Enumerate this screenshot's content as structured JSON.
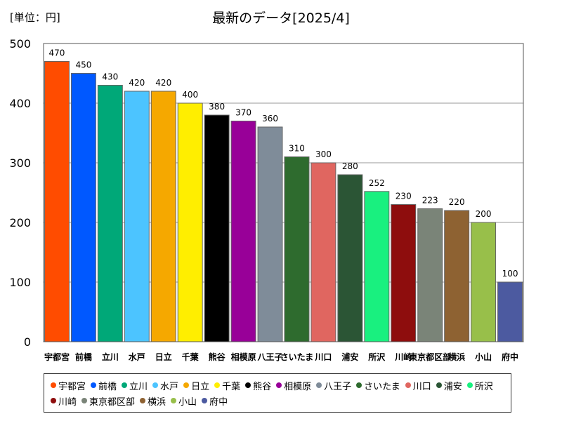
{
  "unit_label": "[単位：円]",
  "chart_data": {
    "type": "bar",
    "title": "最新のデータ[2025/4]",
    "xlabel": "",
    "ylabel": "",
    "ylim": [
      0,
      500
    ],
    "yticks": [
      0,
      100,
      200,
      300,
      400,
      500
    ],
    "grid": true,
    "legend_position": "bottom",
    "categories": [
      "宇都宮",
      "前橋",
      "立川",
      "水戸",
      "日立",
      "千葉",
      "熊谷",
      "相模原",
      "八王子",
      "さいたま",
      "川口",
      "浦安",
      "所沢",
      "川崎",
      "東京都区部",
      "横浜",
      "小山",
      "府中"
    ],
    "tick_labels": [
      "宇都宮",
      "前橋",
      "立川",
      "水戸",
      "日立",
      "千葉",
      "熊谷",
      "相模原",
      "八王子",
      "さいたま",
      "川口",
      "浦安",
      "所沢",
      "川崎",
      "東京都区部",
      "横浜",
      "小山",
      "府中"
    ],
    "values": [
      470,
      450,
      430,
      420,
      420,
      400,
      380,
      370,
      360,
      310,
      300,
      280,
      252,
      230,
      223,
      220,
      200,
      100
    ],
    "colors": [
      "#ff4c00",
      "#0058ff",
      "#00a878",
      "#4cc4ff",
      "#f5a800",
      "#ffee00",
      "#000000",
      "#980098",
      "#7f8c99",
      "#2e6b2e",
      "#e06660",
      "#2b5535",
      "#19f07f",
      "#8e0d0d",
      "#7a8478",
      "#8e6232",
      "#98bf4a",
      "#4c5aa0"
    ]
  }
}
